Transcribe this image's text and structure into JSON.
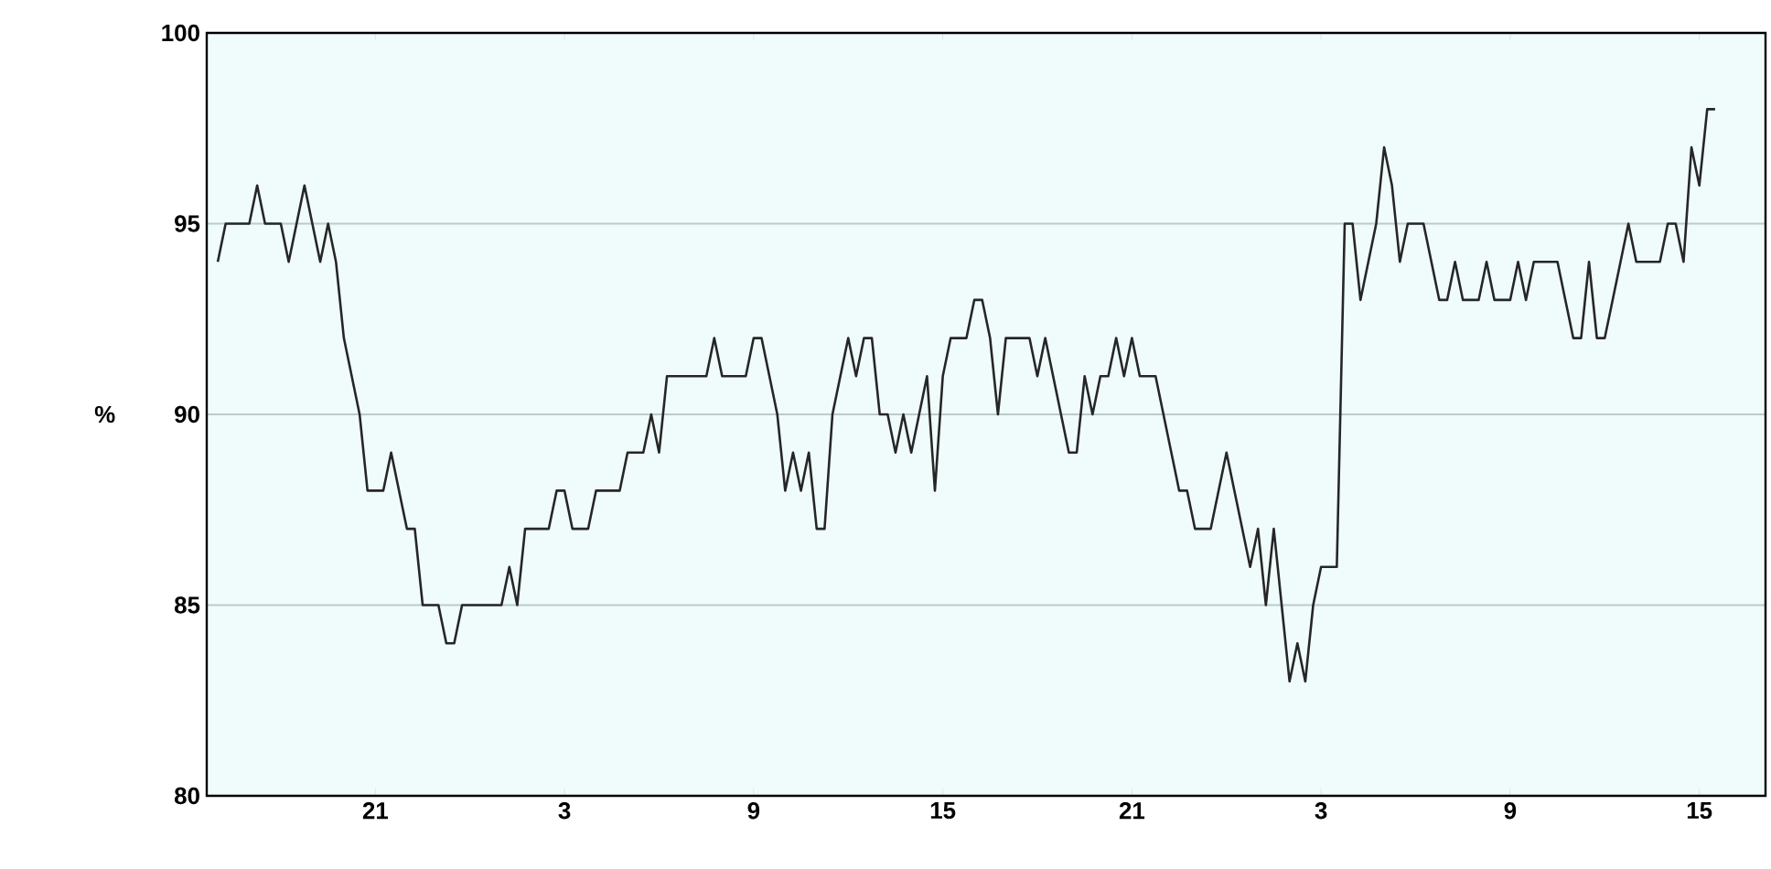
{
  "chart_data": {
    "type": "line",
    "ylabel": "%",
    "color": "#262626",
    "grid": "y",
    "ylim": [
      80,
      100
    ],
    "yticks": [
      80,
      85,
      90,
      95,
      100
    ],
    "categories": [
      null,
      null,
      null,
      null,
      null,
      null,
      null,
      null,
      null,
      null,
      null,
      null,
      null,
      null,
      null,
      null,
      null,
      null,
      null,
      null,
      "21",
      null,
      null,
      null,
      null,
      null,
      null,
      null,
      null,
      null,
      null,
      null,
      null,
      null,
      null,
      null,
      null,
      null,
      null,
      null,
      null,
      null,
      null,
      null,
      "3",
      null,
      null,
      null,
      null,
      null,
      null,
      null,
      null,
      null,
      null,
      null,
      null,
      null,
      null,
      null,
      null,
      null,
      null,
      null,
      null,
      null,
      null,
      null,
      "9",
      null,
      null,
      null,
      null,
      null,
      null,
      null,
      null,
      null,
      null,
      null,
      null,
      null,
      null,
      null,
      null,
      null,
      null,
      null,
      null,
      null,
      null,
      null,
      "15",
      null,
      null,
      null,
      null,
      null,
      null,
      null,
      null,
      null,
      null,
      null,
      null,
      null,
      null,
      null,
      null,
      null,
      null,
      null,
      null,
      null,
      null,
      null,
      "21",
      null,
      null,
      null,
      null,
      null,
      null,
      null,
      null,
      null,
      null,
      null,
      null,
      null,
      null,
      null,
      null,
      null,
      null,
      null,
      null,
      null,
      null,
      null,
      "3",
      null,
      null,
      null,
      null,
      null,
      null,
      null,
      null,
      null,
      null,
      null,
      null,
      null,
      null,
      null,
      null,
      null,
      null,
      null,
      null,
      null,
      null,
      null,
      "9",
      null,
      null,
      null,
      null,
      null,
      null,
      null,
      null,
      null,
      null,
      null,
      null,
      null,
      null,
      null,
      null,
      null,
      null,
      null,
      null,
      null,
      null,
      null,
      "15",
      null,
      null
    ],
    "values": [
      94,
      95,
      95,
      95,
      95,
      96,
      95,
      95,
      95,
      94,
      95,
      96,
      95,
      94,
      95,
      94,
      92,
      91,
      90,
      88,
      88,
      88,
      89,
      88,
      87,
      87,
      85,
      85,
      85,
      84,
      84,
      85,
      85,
      85,
      85,
      85,
      85,
      86,
      85,
      87,
      87,
      87,
      87,
      88,
      88,
      87,
      87,
      87,
      88,
      88,
      88,
      88,
      89,
      89,
      89,
      90,
      89,
      91,
      91,
      91,
      91,
      91,
      91,
      92,
      91,
      91,
      91,
      91,
      92,
      92,
      91,
      90,
      88,
      89,
      88,
      89,
      87,
      87,
      90,
      91,
      92,
      91,
      92,
      92,
      90,
      90,
      89,
      90,
      89,
      90,
      91,
      88,
      91,
      92,
      92,
      92,
      93,
      93,
      92,
      90,
      92,
      92,
      92,
      92,
      91,
      92,
      91,
      90,
      89,
      89,
      91,
      90,
      91,
      91,
      92,
      91,
      92,
      91,
      91,
      91,
      90,
      89,
      88,
      88,
      87,
      87,
      87,
      88,
      89,
      88,
      87,
      86,
      87,
      85,
      87,
      85,
      83,
      84,
      83,
      85,
      86,
      86,
      86,
      95,
      95,
      93,
      94,
      95,
      97,
      96,
      94,
      95,
      95,
      95,
      94,
      93,
      93,
      94,
      93,
      93,
      93,
      94,
      93,
      93,
      93,
      94,
      93,
      94,
      94,
      94,
      94,
      93,
      92,
      92,
      94,
      92,
      92,
      93,
      94,
      95,
      94,
      94,
      94,
      94,
      95,
      95,
      94,
      97,
      96,
      98,
      98
    ]
  }
}
